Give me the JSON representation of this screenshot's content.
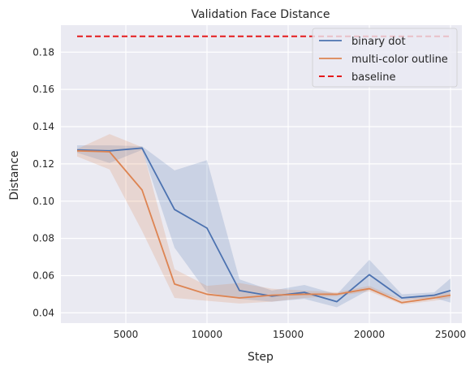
{
  "chart_data": {
    "type": "line",
    "title": "Validation Face Distance",
    "xlabel": "Step",
    "ylabel": "Distance",
    "xlim": [
      1000,
      25700
    ],
    "ylim": [
      0.0345,
      0.1945
    ],
    "xticks": [
      5000,
      10000,
      15000,
      20000,
      25000
    ],
    "yticks": [
      0.04,
      0.06,
      0.08,
      0.1,
      0.12,
      0.14,
      0.16,
      0.18
    ],
    "grid": true,
    "legend_position": "top-right",
    "x": [
      2000,
      4000,
      6000,
      8000,
      10000,
      12000,
      14000,
      16000,
      18000,
      20000,
      22000,
      24000,
      25000
    ],
    "series": [
      {
        "name": "binary dot",
        "color": "#4c72b0",
        "style": "solid",
        "values": [
          0.1275,
          0.127,
          0.1285,
          0.0955,
          0.0855,
          0.052,
          0.049,
          0.051,
          0.046,
          0.0605,
          0.048,
          0.0495,
          0.052
        ],
        "band_upper": [
          0.13,
          0.13,
          0.1295,
          0.1165,
          0.122,
          0.058,
          0.052,
          0.055,
          0.05,
          0.0685,
          0.05,
          0.051,
          0.0585
        ],
        "band_lower": [
          0.126,
          0.1205,
          0.1275,
          0.075,
          0.051,
          0.0475,
          0.046,
          0.0475,
          0.043,
          0.0525,
          0.047,
          0.048,
          0.0455
        ]
      },
      {
        "name": "multi-color outline",
        "color": "#dd8452",
        "style": "solid",
        "values": [
          0.127,
          0.1265,
          0.106,
          0.0555,
          0.05,
          0.048,
          0.0495,
          0.05,
          0.05,
          0.053,
          0.0455,
          0.048,
          0.0495
        ],
        "band_upper": [
          0.128,
          0.136,
          0.129,
          0.0635,
          0.0545,
          0.056,
          0.053,
          0.052,
          0.051,
          0.0545,
          0.047,
          0.05,
          0.051
        ],
        "band_lower": [
          0.124,
          0.117,
          0.084,
          0.048,
          0.0465,
          0.045,
          0.046,
          0.048,
          0.049,
          0.0515,
          0.0445,
          0.0465,
          0.048
        ]
      },
      {
        "name": "baseline",
        "color": "#e41a1c",
        "style": "dashed",
        "constant": 0.1885
      }
    ]
  },
  "style": {
    "plot_background": "#eaeaf2",
    "grid_color": "#ffffff",
    "text_color": "#262626"
  }
}
